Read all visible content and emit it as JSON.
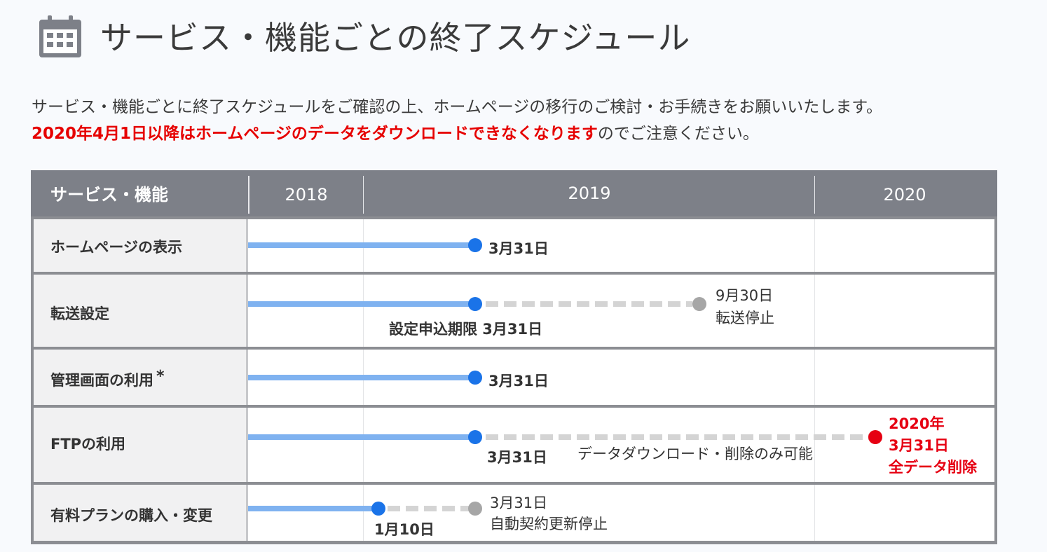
{
  "title": "サービス・機能ごとの終了スケジュール",
  "title_icon": "calendar-icon",
  "intro": {
    "line1": "サービス・機能ごとに終了スケジュールをご確認の上、ホームページの移行のご検討・お手続きをお願いいたします。",
    "line2_red": "2020年4月1日以降はホームページのデータをダウンロードできなくなります",
    "line2_rest": "のでご注意ください。"
  },
  "table": {
    "header": {
      "service": "サービス・機能",
      "years": [
        "2018",
        "2019",
        "2020"
      ]
    },
    "rows": [
      {
        "label": "ホームページの表示",
        "labels": {
          "end": "3月31日"
        }
      },
      {
        "label": "転送設定",
        "labels": {
          "end": "設定申込期限 3月31日",
          "stop_date": "9月30日",
          "stop_text": "転送停止"
        }
      },
      {
        "label": "管理画面の利用",
        "asterisk": "*",
        "labels": {
          "end": "3月31日"
        }
      },
      {
        "label": "FTPの利用",
        "labels": {
          "end": "3月31日",
          "mid": "データダウンロード・削除のみ可能",
          "final1": "2020年",
          "final2": "3月31日",
          "final3": "全データ削除"
        }
      },
      {
        "label": "有料プランの購入・変更",
        "labels": {
          "end": "1月10日",
          "stop_date": "3月31日",
          "stop_text": "自動契約更新停止"
        }
      }
    ]
  },
  "colors": {
    "active": "#7fb2f0",
    "active_dot": "#1a73e8",
    "ended": "#d4d4d4",
    "ended_dot": "#a6a6a6",
    "delete_dot": "#e60012",
    "header_bg": "#7d8088"
  }
}
